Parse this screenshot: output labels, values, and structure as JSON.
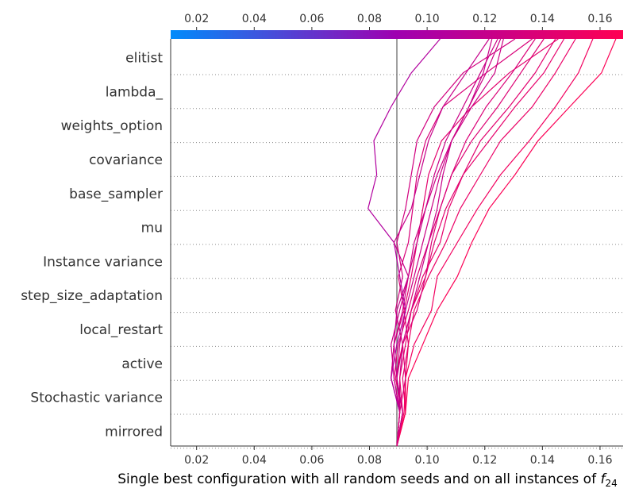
{
  "chart_data": {
    "type": "line",
    "title": "",
    "xlabel": {
      "text": "Single best configuration with all random seeds and on all instances of ",
      "math_var": "f",
      "math_sub": "24"
    },
    "xlim": [
      0.011,
      0.168
    ],
    "xticks": [
      0.02,
      0.04,
      0.06,
      0.08,
      0.1,
      0.12,
      0.14,
      0.16
    ],
    "xtick_labels": [
      "0.02",
      "0.04",
      "0.06",
      "0.08",
      "0.10",
      "0.12",
      "0.14",
      "0.16"
    ],
    "base_value": 0.0895,
    "features": [
      "elitist",
      "lambda_",
      "weights_option",
      "covariance",
      "base_sampler",
      "mu",
      "Instance variance",
      "step_size_adaptation",
      "local_restart",
      "active",
      "Stochastic variance",
      "mirrored"
    ],
    "colormap": {
      "low": "#008bfb",
      "high": "#ff0052"
    },
    "grid": "dotted-horizontal",
    "series": [
      {
        "values": [
          0.0895,
          0.0915,
          0.0895,
          0.0915,
          0.089,
          0.0915,
          0.0895,
          0.0925,
          0.0945,
          0.0965,
          0.1025,
          0.1125,
          0.1305
        ]
      },
      {
        "values": [
          0.0895,
          0.0905,
          0.0875,
          0.0885,
          0.092,
          0.09,
          0.0935,
          0.095,
          0.0965,
          0.0995,
          0.1055,
          0.1205,
          0.1365
        ]
      },
      {
        "values": [
          0.0895,
          0.0925,
          0.0915,
          0.0935,
          0.092,
          0.0945,
          0.0965,
          0.0985,
          0.1005,
          0.105,
          0.1155,
          0.1285,
          0.1455
        ]
      },
      {
        "values": [
          0.0895,
          0.0925,
          0.0925,
          0.0935,
          0.0955,
          0.1005,
          0.1065,
          0.1115,
          0.1185,
          0.1255,
          0.1365,
          0.1445,
          0.1515
        ]
      },
      {
        "values": [
          0.0895,
          0.0915,
          0.089,
          0.0915,
          0.0945,
          0.0985,
          0.1045,
          0.1075,
          0.1125,
          0.1215,
          0.1305,
          0.1405,
          0.1475
        ]
      },
      {
        "values": [
          0.0895,
          0.0905,
          0.0885,
          0.09,
          0.0935,
          0.0965,
          0.1005,
          0.1045,
          0.1085,
          0.1155,
          0.1245,
          0.1325,
          0.1405
        ]
      },
      {
        "values": [
          0.0895,
          0.092,
          0.0925,
          0.0955,
          0.1015,
          0.1035,
          0.1105,
          0.1175,
          0.1255,
          0.1355,
          0.1445,
          0.1525,
          0.1575
        ]
      },
      {
        "values": [
          0.0895,
          0.0925,
          0.0935,
          0.0985,
          0.1035,
          0.1105,
          0.1155,
          0.1215,
          0.1305,
          0.1385,
          0.1495,
          0.1605,
          0.1655
        ]
      },
      {
        "values": [
          0.0895,
          0.0905,
          0.0875,
          0.0885,
          0.0915,
          0.0935,
          0.0955,
          0.0995,
          0.1035,
          0.1085,
          0.1155,
          0.1235,
          0.1265
        ]
      },
      {
        "values": [
          0.0895,
          0.0905,
          0.0905,
          0.0915,
          0.0945,
          0.0975,
          0.1005,
          0.1035,
          0.1055,
          0.1085,
          0.1145,
          0.1195,
          0.1225
        ]
      },
      {
        "values": [
          0.0895,
          0.0915,
          0.0905,
          0.0925,
          0.0945,
          0.0995,
          0.1025,
          0.1065,
          0.1125,
          0.1185,
          0.1285,
          0.1375,
          0.1445
        ]
      },
      {
        "values": [
          0.0895,
          0.0905,
          0.0885,
          0.0875,
          0.0905,
          0.0935,
          0.0965,
          0.0995,
          0.1025,
          0.1065,
          0.1125,
          0.1185,
          0.1245
        ]
      },
      {
        "values": [
          0.0895,
          0.0915,
          0.0895,
          0.0905,
          0.0925,
          0.0955,
          0.0985,
          0.1015,
          0.1045,
          0.1085,
          0.1145,
          0.1205,
          0.1255
        ]
      },
      {
        "values": [
          0.0895,
          0.0905,
          0.0875,
          0.0895,
          0.0925,
          0.0905,
          0.0885,
          0.0795,
          0.0825,
          0.0815,
          0.0875,
          0.0945,
          0.1045
        ]
      },
      {
        "values": [
          0.0895,
          0.0905,
          0.0895,
          0.0885,
          0.0895,
          0.0935,
          0.0885,
          0.0945,
          0.0975,
          0.1005,
          0.1055,
          0.1135,
          0.1215
        ]
      },
      {
        "values": [
          0.0895,
          0.0905,
          0.0925,
          0.0915,
          0.0965,
          0.0995,
          0.1015,
          0.1045,
          0.1085,
          0.1135,
          0.1205,
          0.1295,
          0.1375
        ]
      }
    ]
  }
}
